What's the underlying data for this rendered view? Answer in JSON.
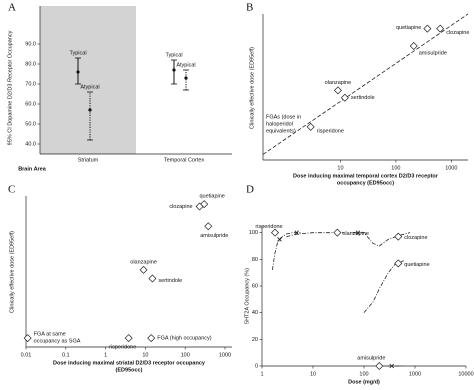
{
  "chart_data": [
    {
      "type": "errorbar",
      "panel_label": "A",
      "xlabel": "Brain Area",
      "ylabel": "95% CI Dopamine D2/D3 Receptor Occupancy",
      "categories": [
        "Striatum",
        "Temporal Cortex"
      ],
      "category_backgrounds": [
        "#d3d3d3",
        "#ffffff"
      ],
      "ylim": [
        35,
        101
      ],
      "yticks": [
        {
          "value": 40,
          "label": "40.0"
        },
        {
          "value": 50,
          "label": "50.0"
        },
        {
          "value": 60,
          "label": "60.0"
        },
        {
          "value": 70,
          "label": "70.0"
        },
        {
          "value": 80,
          "label": "80.0"
        },
        {
          "value": 90,
          "label": "90.0"
        }
      ],
      "series": [
        {
          "name": "Typical",
          "style": "solid",
          "color": "#111111",
          "values": [
            76,
            77
          ],
          "lower": [
            70,
            70
          ],
          "upper": [
            83,
            82
          ]
        },
        {
          "name": "Atypical",
          "style": "dotted",
          "color": "#111111",
          "values": [
            57,
            73
          ],
          "lower": [
            42,
            67
          ],
          "upper": [
            66,
            77
          ]
        }
      ]
    },
    {
      "type": "scatter",
      "panel_label": "B",
      "xscale": "log",
      "yscale": "log",
      "xlabel": [
        "Dose inducing maximal temporal cortex D2/D3 receptor",
        "occupancy (ED95occ)"
      ],
      "ylabel": "Clinically effective dose (ED95eff)",
      "xlim": [
        0.4,
        2000
      ],
      "ylim": [
        1,
        1000
      ],
      "xticks": [
        10,
        100,
        1000
      ],
      "points": [
        {
          "name": "quetiapine",
          "x": 370,
          "y": 500
        },
        {
          "name": "clozapine",
          "x": 630,
          "y": 500
        },
        {
          "name": "amisulpride",
          "x": 210,
          "y": 220
        },
        {
          "name": "olanzapine",
          "x": 9,
          "y": 27
        },
        {
          "name": "sertindole",
          "x": 12,
          "y": 19
        },
        {
          "name": "risperidone",
          "x": 2.9,
          "y": 4.8
        }
      ],
      "annotation": [
        "FGAs (dose in",
        "haloperidol",
        "equivalents)"
      ],
      "fit_line": {
        "x": [
          0.4,
          2000
        ],
        "y": [
          1.3,
          1000
        ]
      }
    },
    {
      "type": "scatter",
      "panel_label": "C",
      "xscale": "log",
      "yscale": "log",
      "xlabel": [
        "Dose inducing maximal striatal D2/D3 receptor occupancy",
        "(ED95occ)"
      ],
      "ylabel": "Clinically effective dose (ED95eff)",
      "xlim": [
        0.01,
        1500
      ],
      "ylim": [
        1,
        1000
      ],
      "xticks": [
        0.01,
        0.1,
        1,
        10,
        100,
        1000
      ],
      "points": [
        {
          "name": "quetiapine",
          "x": 300,
          "y": 690
        },
        {
          "name": "clozapine",
          "x": 230,
          "y": 620
        },
        {
          "name": "amisulpride",
          "x": 380,
          "y": 250
        },
        {
          "name": "olanzapine",
          "x": 9,
          "y": 34
        },
        {
          "name": "sertindole",
          "x": 15,
          "y": 23
        },
        {
          "name": "FGA (high occupancy)",
          "x": 14,
          "y": 1.5
        },
        {
          "name": "risperidone",
          "x": 3.8,
          "y": 1.5
        },
        {
          "name": [
            "FGA at same",
            "occupancy as SGA"
          ],
          "x": 0.011,
          "y": 1.5
        }
      ]
    },
    {
      "type": "line",
      "panel_label": "D",
      "xscale": "log",
      "xlabel": "Dose (mg/d)",
      "ylabel": "5HT2A Occupancy (%)",
      "xlim": [
        1,
        10000
      ],
      "ylim": [
        0,
        105
      ],
      "xticks": [
        1,
        10,
        100,
        1000,
        10000
      ],
      "yticks": [
        0,
        20,
        40,
        60,
        80,
        100
      ],
      "series": [
        {
          "name": "risperidone",
          "x": [
            1.6,
            1.8,
            2,
            2.5,
            3,
            4,
            6
          ],
          "values": [
            72,
            85,
            92,
            97,
            99,
            100,
            100
          ],
          "marker_x": 1.8,
          "marker_y": 100,
          "cross_x": 2.2,
          "cross_y": 95
        },
        {
          "name": "olanzapine",
          "x": [
            3,
            5,
            10,
            20,
            40
          ],
          "values": [
            97,
            99,
            100,
            100,
            100
          ],
          "marker_x": 30,
          "marker_y": 100,
          "cross_x": 4.8,
          "cross_y": 100
        },
        {
          "name": "clozapine",
          "x": [
            60,
            100,
            150,
            200,
            300,
            500,
            800
          ],
          "values": [
            100,
            100,
            92,
            90,
            95,
            98,
            100
          ],
          "marker_x": 470,
          "marker_y": 97,
          "cross_x": 76,
          "cross_y": 100
        },
        {
          "name": "quetiapine",
          "x": [
            100,
            150,
            200,
            300,
            400,
            600
          ],
          "values": [
            40,
            48,
            58,
            70,
            76,
            79
          ],
          "marker_x": 470,
          "marker_y": 77
        },
        {
          "name": "amisulpride",
          "x": [
            200,
            300,
            400,
            600
          ],
          "values": [
            0,
            0,
            0,
            0
          ],
          "marker_x": 200,
          "marker_y": 0,
          "cross_x": 350,
          "cross_y": 0
        }
      ]
    }
  ]
}
